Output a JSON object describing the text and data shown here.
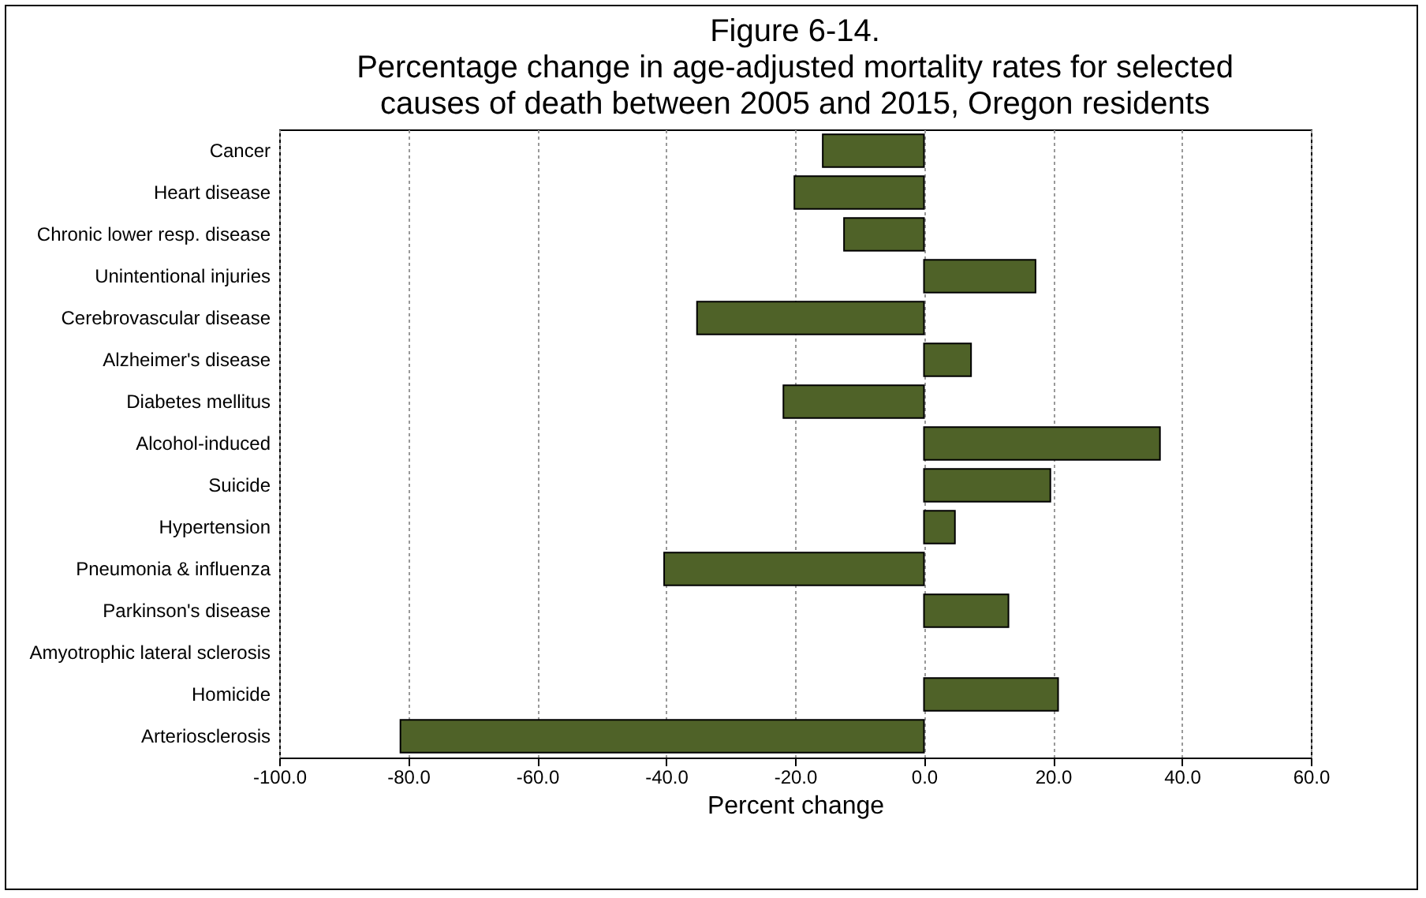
{
  "chart_data": {
    "type": "bar",
    "orientation": "horizontal",
    "title": "Figure 6-14.\nPercentage change in age-adjusted mortality rates for selected\ncauses of death between 2005 and 2015, Oregon residents",
    "xlabel": "Percent change",
    "categories": [
      "Cancer",
      "Heart disease",
      "Chronic lower resp. disease",
      "Unintentional injuries",
      "Cerebrovascular disease",
      "Alzheimer's disease",
      "Diabetes mellitus",
      "Alcohol-induced",
      "Suicide",
      "Hypertension",
      "Pneumonia & influenza",
      "Parkinson's disease",
      "Amyotrophic lateral sclerosis",
      "Homicide",
      "Arteriosclerosis"
    ],
    "values": [
      -15.7,
      -20.1,
      -12.4,
      17.3,
      -35.2,
      7.3,
      -21.8,
      36.6,
      19.6,
      4.8,
      -40.3,
      13.1,
      null,
      20.8,
      -81.2
    ],
    "color": "#4f6228",
    "xlim": [
      -100,
      60
    ],
    "xticks": [
      {
        "value": -100,
        "label": "-100.0"
      },
      {
        "value": -80,
        "label": "-80.0"
      },
      {
        "value": -60,
        "label": "-60.0"
      },
      {
        "value": -40,
        "label": "-40.0"
      },
      {
        "value": -20,
        "label": "-20.0"
      },
      {
        "value": 0,
        "label": "0.0"
      },
      {
        "value": 20,
        "label": "20.0"
      },
      {
        "value": 40,
        "label": "40.0"
      },
      {
        "value": 60,
        "label": "60.0"
      }
    ],
    "grid": "x"
  }
}
